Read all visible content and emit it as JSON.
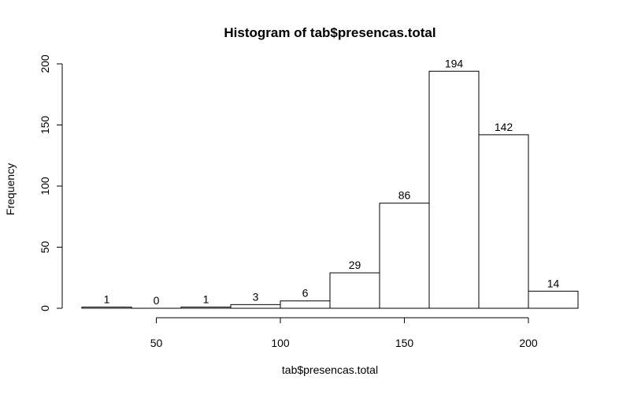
{
  "chart_data": {
    "type": "bar",
    "title": "Histogram of tab$presencas.total",
    "xlabel": "tab$presencas.total",
    "ylabel": "Frequency",
    "bins": [
      {
        "start": 20,
        "end": 40,
        "count": 1
      },
      {
        "start": 40,
        "end": 60,
        "count": 0
      },
      {
        "start": 60,
        "end": 80,
        "count": 1
      },
      {
        "start": 80,
        "end": 100,
        "count": 3
      },
      {
        "start": 100,
        "end": 120,
        "count": 6
      },
      {
        "start": 120,
        "end": 140,
        "count": 29
      },
      {
        "start": 140,
        "end": 160,
        "count": 86
      },
      {
        "start": 160,
        "end": 180,
        "count": 194
      },
      {
        "start": 180,
        "end": 200,
        "count": 142
      },
      {
        "start": 200,
        "end": 220,
        "count": 14
      }
    ],
    "x_ticks": [
      50,
      100,
      150,
      200
    ],
    "y_ticks": [
      0,
      50,
      100,
      150,
      200
    ],
    "xlim": [
      20,
      220
    ],
    "ylim": [
      0,
      200
    ],
    "grid": false,
    "legend": "none"
  }
}
